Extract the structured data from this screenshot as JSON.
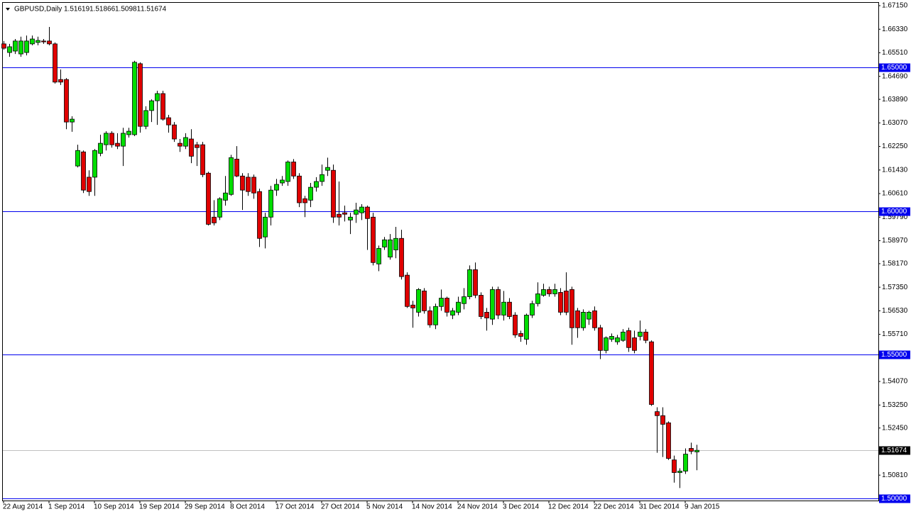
{
  "chart_data": {
    "type": "candlestick",
    "symbol": "GBPUSD,Daily",
    "categories": [
      "22 Aug 2014",
      null,
      null,
      null,
      null,
      null,
      null,
      null,
      "1 Sep 2014",
      null,
      null,
      null,
      null,
      null,
      null,
      null,
      "10 Sep 2014",
      null,
      null,
      null,
      null,
      null,
      null,
      null,
      "19 Sep 2014",
      null,
      null,
      null,
      null,
      null,
      null,
      null,
      "29 Sep 2014",
      null,
      null,
      null,
      null,
      null,
      null,
      null,
      "8 Oct 2014",
      null,
      null,
      null,
      null,
      null,
      null,
      null,
      "17 Oct 2014",
      null,
      null,
      null,
      null,
      null,
      null,
      null,
      "27 Oct 2014",
      null,
      null,
      null,
      null,
      null,
      null,
      null,
      "5 Nov 2014",
      null,
      null,
      null,
      null,
      null,
      null,
      null,
      "14 Nov 2014",
      null,
      null,
      null,
      null,
      null,
      null,
      null,
      "24 Nov 2014",
      null,
      null,
      null,
      null,
      null,
      null,
      null,
      "3 Dec 2014",
      null,
      null,
      null,
      null,
      null,
      null,
      null,
      "12 Dec 2014",
      null,
      null,
      null,
      null,
      null,
      null,
      null,
      "22 Dec 2014",
      null,
      null,
      null,
      null,
      null,
      null,
      null,
      "31 Dec 2014",
      null,
      null,
      null,
      null,
      null,
      null,
      null,
      "9 Jan 2015",
      null,
      null
    ],
    "values": [
      [
        1.6582,
        1.6592,
        1.6562,
        1.6567
      ],
      [
        1.6552,
        1.6582,
        1.6537,
        1.6572
      ],
      [
        1.6557,
        1.6599,
        1.6547,
        1.6592
      ],
      [
        1.6547,
        1.6607,
        1.6537,
        1.6592
      ],
      [
        1.6552,
        1.6611,
        1.6542,
        1.6592
      ],
      [
        1.6582,
        1.6611,
        1.6577,
        1.6599
      ],
      [
        1.6587,
        1.6607,
        1.6577,
        1.6594
      ],
      [
        1.6592,
        1.6599,
        1.6582,
        1.6589
      ],
      [
        1.6592,
        1.6641,
        1.6577,
        1.6582
      ],
      [
        1.6582,
        1.6587,
        1.6444,
        1.6449
      ],
      [
        1.6458,
        1.6493,
        1.6439,
        1.6449
      ],
      [
        1.6458,
        1.6463,
        1.6285,
        1.631
      ],
      [
        1.631,
        1.633,
        1.6276,
        1.632
      ],
      [
        1.6157,
        1.6231,
        1.6152,
        1.6211
      ],
      [
        1.6206,
        1.6211,
        1.6063,
        1.6073
      ],
      [
        1.6118,
        1.6142,
        1.6053,
        1.6068
      ],
      [
        1.6118,
        1.6216,
        1.6053,
        1.6211
      ],
      [
        1.6201,
        1.6266,
        1.6191,
        1.6236
      ],
      [
        1.6231,
        1.6278,
        1.6211,
        1.6271
      ],
      [
        1.6271,
        1.6278,
        1.6221,
        1.6231
      ],
      [
        1.6236,
        1.6271,
        1.6216,
        1.6226
      ],
      [
        1.6226,
        1.629,
        1.6157,
        1.6271
      ],
      [
        1.6266,
        1.629,
        1.6256,
        1.6278
      ],
      [
        1.6266,
        1.6523,
        1.6261,
        1.6518
      ],
      [
        1.6513,
        1.6518,
        1.6273,
        1.6295
      ],
      [
        1.6295,
        1.6365,
        1.6285,
        1.635
      ],
      [
        1.635,
        1.6389,
        1.631,
        1.6384
      ],
      [
        1.6384,
        1.6419,
        1.63,
        1.6409
      ],
      [
        1.6409,
        1.6419,
        1.6315,
        1.632
      ],
      [
        1.6325,
        1.6335,
        1.6273,
        1.63
      ],
      [
        1.63,
        1.631,
        1.6241,
        1.6251
      ],
      [
        1.6236,
        1.6251,
        1.6206,
        1.6226
      ],
      [
        1.6226,
        1.6271,
        1.6216,
        1.6256
      ],
      [
        1.6251,
        1.6285,
        1.6167,
        1.6191
      ],
      [
        1.6231,
        1.6241,
        1.6157,
        1.6221
      ],
      [
        1.6231,
        1.6241,
        1.6118,
        1.6127
      ],
      [
        1.6132,
        1.6137,
        1.595,
        1.5954
      ],
      [
        1.5979,
        1.6038,
        1.595,
        1.5959
      ],
      [
        1.5979,
        1.6048,
        1.5969,
        1.6043
      ],
      [
        1.6038,
        1.6122,
        1.6019,
        1.6063
      ],
      [
        1.6058,
        1.6196,
        1.6053,
        1.6186
      ],
      [
        1.6181,
        1.6226,
        1.6118,
        1.6122
      ],
      [
        1.6122,
        1.6132,
        1.6004,
        1.6073
      ],
      [
        1.6118,
        1.6132,
        1.6053,
        1.6068
      ],
      [
        1.6118,
        1.6127,
        1.6043,
        1.6063
      ],
      [
        1.6068,
        1.6078,
        1.5875,
        1.5905
      ],
      [
        1.591,
        1.5994,
        1.587,
        1.5979
      ],
      [
        1.5979,
        1.6088,
        1.595,
        1.6073
      ],
      [
        1.6073,
        1.6112,
        1.6053,
        1.6093
      ],
      [
        1.6098,
        1.6122,
        1.6088,
        1.6108
      ],
      [
        1.6103,
        1.6176,
        1.6088,
        1.6171
      ],
      [
        1.6171,
        1.6181,
        1.6112,
        1.6122
      ],
      [
        1.6122,
        1.6132,
        1.6014,
        1.6029
      ],
      [
        1.6043,
        1.6053,
        1.5979,
        1.6029
      ],
      [
        1.6038,
        1.6098,
        1.6014,
        1.6083
      ],
      [
        1.6083,
        1.6118,
        1.6068,
        1.6103
      ],
      [
        1.6103,
        1.6162,
        1.6088,
        1.6127
      ],
      [
        1.6142,
        1.6186,
        1.6122,
        1.6152
      ],
      [
        1.6142,
        1.6162,
        1.5959,
        1.5979
      ],
      [
        1.5989,
        1.6103,
        1.595,
        1.5979
      ],
      [
        1.5994,
        1.6019,
        1.5964,
        1.5989
      ],
      [
        1.5969,
        1.5994,
        1.592,
        1.5979
      ],
      [
        1.5989,
        1.6029,
        1.5959,
        1.6004
      ],
      [
        1.5994,
        1.6024,
        1.5969,
        1.6014
      ],
      [
        1.6014,
        1.6019,
        1.5865,
        1.5974
      ],
      [
        1.5979,
        1.5994,
        1.5811,
        1.5821
      ],
      [
        1.5816,
        1.588,
        1.5791,
        1.587
      ],
      [
        1.5875,
        1.591,
        1.5865,
        1.59
      ],
      [
        1.584,
        1.592,
        1.5831,
        1.59
      ],
      [
        1.5865,
        1.5945,
        1.5836,
        1.5905
      ],
      [
        1.5905,
        1.5935,
        1.5762,
        1.5772
      ],
      [
        1.5777,
        1.5787,
        1.5663,
        1.5668
      ],
      [
        1.5673,
        1.5688,
        1.5594,
        1.5663
      ],
      [
        1.5648,
        1.5732,
        1.5633,
        1.5727
      ],
      [
        1.5722,
        1.5732,
        1.5643,
        1.5653
      ],
      [
        1.5653,
        1.5668,
        1.5594,
        1.5604
      ],
      [
        1.5604,
        1.5678,
        1.5589,
        1.5668
      ],
      [
        1.5668,
        1.5727,
        1.5653,
        1.5697
      ],
      [
        1.5697,
        1.5702,
        1.5633,
        1.5648
      ],
      [
        1.5638,
        1.5663,
        1.5624,
        1.5653
      ],
      [
        1.5648,
        1.5702,
        1.5638,
        1.5683
      ],
      [
        1.5678,
        1.5732,
        1.5658,
        1.5702
      ],
      [
        1.5702,
        1.5811,
        1.5693,
        1.5796
      ],
      [
        1.5796,
        1.5821,
        1.5697,
        1.5707
      ],
      [
        1.5707,
        1.5717,
        1.5624,
        1.5633
      ],
      [
        1.5648,
        1.5663,
        1.5584,
        1.5628
      ],
      [
        1.5624,
        1.5737,
        1.5604,
        1.5727
      ],
      [
        1.5727,
        1.5737,
        1.5624,
        1.5638
      ],
      [
        1.5638,
        1.5722,
        1.5619,
        1.5683
      ],
      [
        1.5683,
        1.5697,
        1.5624,
        1.5633
      ],
      [
        1.5638,
        1.5648,
        1.5559,
        1.5569
      ],
      [
        1.5574,
        1.5584,
        1.5545,
        1.5564
      ],
      [
        1.5554,
        1.5643,
        1.5535,
        1.5638
      ],
      [
        1.5638,
        1.5688,
        1.5628,
        1.5678
      ],
      [
        1.5678,
        1.5752,
        1.5668,
        1.5712
      ],
      [
        1.5707,
        1.5747,
        1.5702,
        1.5727
      ],
      [
        1.5727,
        1.5737,
        1.5702,
        1.5712
      ],
      [
        1.5712,
        1.5747,
        1.5702,
        1.5727
      ],
      [
        1.5717,
        1.5732,
        1.5638,
        1.5648
      ],
      [
        1.5722,
        1.5787,
        1.5638,
        1.5648
      ],
      [
        1.5727,
        1.5737,
        1.5535,
        1.5594
      ],
      [
        1.5653,
        1.5663,
        1.5559,
        1.5594
      ],
      [
        1.5594,
        1.5658,
        1.5584,
        1.5648
      ],
      [
        1.5624,
        1.5653,
        1.5604,
        1.5648
      ],
      [
        1.5653,
        1.5668,
        1.5584,
        1.5594
      ],
      [
        1.5594,
        1.5604,
        1.5485,
        1.5515
      ],
      [
        1.5515,
        1.5564,
        1.5505,
        1.5559
      ],
      [
        1.5554,
        1.5574,
        1.5545,
        1.5564
      ],
      [
        1.5545,
        1.5569,
        1.5535,
        1.5559
      ],
      [
        1.555,
        1.5589,
        1.5545,
        1.5579
      ],
      [
        1.5584,
        1.5594,
        1.551,
        1.5525
      ],
      [
        1.5559,
        1.5584,
        1.5505,
        1.5515
      ],
      [
        1.5564,
        1.5619,
        1.555,
        1.5579
      ],
      [
        1.5579,
        1.5589,
        1.554,
        1.555
      ],
      [
        1.5545,
        1.555,
        1.5322,
        1.5327
      ],
      [
        1.5302,
        1.5317,
        1.5159,
        1.5288
      ],
      [
        1.5288,
        1.5317,
        1.5144,
        1.5258
      ],
      [
        1.5263,
        1.5268,
        1.5134,
        1.5139
      ],
      [
        1.5134,
        1.5149,
        1.5055,
        1.509
      ],
      [
        1.509,
        1.5105,
        1.5036,
        1.5095
      ],
      [
        1.5095,
        1.5174,
        1.5085,
        1.5154
      ],
      [
        1.5174,
        1.5194,
        1.5154,
        1.5164
      ],
      [
        1.51619,
        1.51866,
        1.50981,
        1.51674
      ]
    ],
    "up_color": "#00dd00",
    "down_color": "#e00000",
    "level_color": "#0000ee",
    "ylim": [
      1.5,
      1.6715
    ],
    "yticks": [
      {
        "value": 1.6715,
        "label": "1.67150"
      },
      {
        "value": 1.6633,
        "label": "1.66330"
      },
      {
        "value": 1.6551,
        "label": "1.65510"
      },
      {
        "value": 1.6469,
        "label": "1.64690"
      },
      {
        "value": 1.6389,
        "label": "1.63890"
      },
      {
        "value": 1.6307,
        "label": "1.63070"
      },
      {
        "value": 1.6225,
        "label": "1.62250"
      },
      {
        "value": 1.6143,
        "label": "1.61430"
      },
      {
        "value": 1.6061,
        "label": "1.60610"
      },
      {
        "value": 1.5979,
        "label": "1.59790"
      },
      {
        "value": 1.5897,
        "label": "1.58970"
      },
      {
        "value": 1.5817,
        "label": "1.58170"
      },
      {
        "value": 1.5735,
        "label": "1.57350"
      },
      {
        "value": 1.5653,
        "label": "1.56530"
      },
      {
        "value": 1.5571,
        "label": "1.55710"
      },
      {
        "value": 1.5407,
        "label": "1.54070"
      },
      {
        "value": 1.5325,
        "label": "1.53250"
      },
      {
        "value": 1.5245,
        "label": "1.52450"
      },
      {
        "value": 1.5081,
        "label": "1.50810"
      }
    ],
    "levels": [
      {
        "value": 1.65,
        "label": "1.65000"
      },
      {
        "value": 1.6,
        "label": "1.60000"
      },
      {
        "value": 1.55,
        "label": "1.55000"
      },
      {
        "value": 1.5,
        "label": "1.50000"
      }
    ],
    "current_price": {
      "value": 1.51674,
      "label": "1.51674"
    }
  }
}
